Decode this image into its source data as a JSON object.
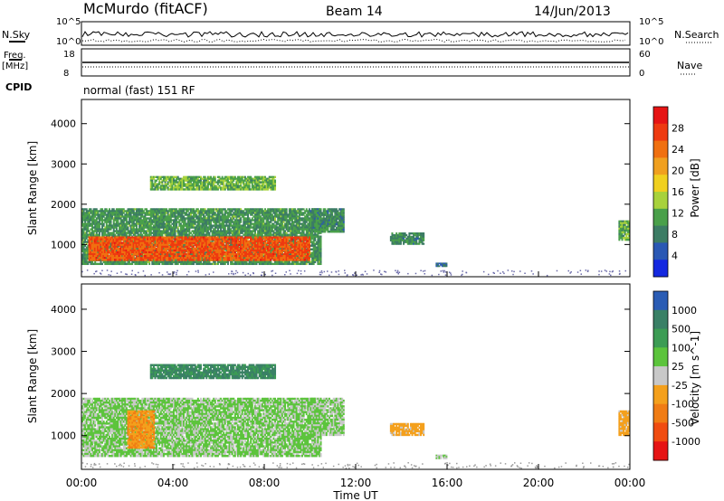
{
  "header": {
    "station": "McMurdo (fitACF)",
    "beam": "Beam 14",
    "date": "14/Jun/2013"
  },
  "strip_labels": {
    "nsky": "N.Sky",
    "freq": "Freq.",
    "freq_unit": "[MHz]",
    "cpid": "CPID",
    "nsearch": "N.Search",
    "nave": "Nave",
    "nsky_ticks": [
      "10^5",
      "10^0"
    ],
    "freq_ticks": [
      "18",
      "8"
    ],
    "nsearch_ticks": [
      "10^5",
      "10^0"
    ],
    "nave_ticks": [
      "60",
      "0"
    ],
    "cpid_text": "normal (fast) 151 RF"
  },
  "axes": {
    "ylabel": "Slant Range [km]",
    "xlabel": "Time UT",
    "y_ticks": [
      "1000",
      "2000",
      "3000",
      "4000"
    ],
    "x_ticks": [
      "00:00",
      "04:00",
      "08:00",
      "12:00",
      "16:00",
      "20:00",
      "00:00"
    ]
  },
  "colors": {
    "power": [
      "#1428e0",
      "#2a58b4",
      "#3c7c64",
      "#4aa04a",
      "#a8d23c",
      "#f0d020",
      "#f0a020",
      "#f07010",
      "#ee3a10",
      "#e61414"
    ],
    "velocity": [
      "#e61414",
      "#f04c10",
      "#f07c14",
      "#f4a01c",
      "#c8c8c8",
      "#5cc43c",
      "#3c9c54",
      "#3a8066",
      "#2a5cb4"
    ]
  },
  "chart_data": [
    {
      "type": "heatmap",
      "panel": "power",
      "xlabel": "Time UT",
      "ylabel": "Slant Range [km]",
      "xlim": [
        0,
        24
      ],
      "ylim": [
        200,
        4600
      ],
      "colorbar": {
        "label": "Power [dB]",
        "range": [
          0,
          32
        ],
        "ticks": [
          "4",
          "8",
          "12",
          "16",
          "20",
          "24",
          "28"
        ]
      },
      "regions": [
        {
          "t0": 0.0,
          "t1": 10.5,
          "r0": 500,
          "r1": 1900,
          "value": 10
        },
        {
          "t0": 0.3,
          "t1": 10.0,
          "r0": 600,
          "r1": 1200,
          "value": 26
        },
        {
          "t0": 3.0,
          "t1": 8.5,
          "r0": 2350,
          "r1": 2700,
          "value": 12
        },
        {
          "t0": 10.0,
          "t1": 11.5,
          "r0": 1300,
          "r1": 1900,
          "value": 9
        },
        {
          "t0": 13.5,
          "t1": 15.0,
          "r0": 1000,
          "r1": 1300,
          "value": 9
        },
        {
          "t0": 15.5,
          "t1": 16.0,
          "r0": 450,
          "r1": 550,
          "value": 6
        },
        {
          "t0": 23.5,
          "t1": 24.0,
          "r0": 1100,
          "r1": 1600,
          "value": 12
        }
      ]
    },
    {
      "type": "heatmap",
      "panel": "velocity",
      "xlabel": "Time UT",
      "ylabel": "Slant Range [km]",
      "xlim": [
        0,
        24
      ],
      "ylim": [
        200,
        4600
      ],
      "colorbar": {
        "label": "Velocity [m s^-1]",
        "range": [
          -1000,
          1000
        ],
        "ticks": [
          "1000",
          "500",
          "100",
          "25",
          "-25",
          "-100",
          "-500",
          "-1000"
        ]
      },
      "regions": [
        {
          "t0": 0.0,
          "t1": 10.5,
          "r0": 500,
          "r1": 1900,
          "value": 150
        },
        {
          "t0": 2.0,
          "t1": 3.2,
          "r0": 700,
          "r1": 1600,
          "value": -300
        },
        {
          "t0": 3.0,
          "t1": 8.5,
          "r0": 2350,
          "r1": 2700,
          "value": 600
        },
        {
          "t0": 10.0,
          "t1": 11.5,
          "r0": 1000,
          "r1": 1900,
          "value": 120
        },
        {
          "t0": 13.5,
          "t1": 15.0,
          "r0": 1000,
          "r1": 1300,
          "value": -200
        },
        {
          "t0": 15.5,
          "t1": 16.0,
          "r0": 450,
          "r1": 550,
          "value": 80
        },
        {
          "t0": 23.5,
          "t1": 24.0,
          "r0": 1000,
          "r1": 1600,
          "value": -200
        }
      ]
    }
  ]
}
